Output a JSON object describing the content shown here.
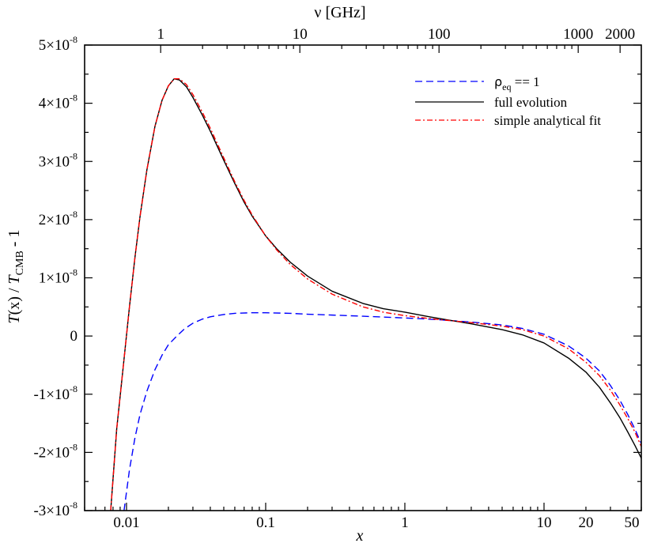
{
  "chart_data": {
    "type": "line",
    "title": "",
    "xlabel": "x",
    "ylabel_parts": {
      "T1": "T",
      "x": "(x) / ",
      "T2": "T",
      "sub": "CMB",
      "tail": " - 1"
    },
    "top_axis_label": "ν  [GHz]",
    "x_scale": "log",
    "xlim": [
      0.005,
      50
    ],
    "ylim": [
      -3e-08,
      5e-08
    ],
    "x_ticks": [
      {
        "value": 0.01,
        "label": "0.01"
      },
      {
        "value": 0.1,
        "label": "0.1"
      },
      {
        "value": 1,
        "label": "1"
      },
      {
        "value": 10,
        "label": "10"
      },
      {
        "value": 20,
        "label": "20"
      },
      {
        "value": 50,
        "label": "50"
      }
    ],
    "top_ticks": [
      {
        "x": 0.0176,
        "label": "1"
      },
      {
        "x": 0.176,
        "label": "10"
      },
      {
        "x": 1.76,
        "label": "100"
      },
      {
        "x": 17.6,
        "label": "1000"
      },
      {
        "x": 35.2,
        "label": "2000"
      }
    ],
    "y_ticks": [
      {
        "value": 5e-08,
        "mant": "5×10",
        "exp": "-8"
      },
      {
        "value": 4e-08,
        "mant": "4×10",
        "exp": "-8"
      },
      {
        "value": 3e-08,
        "mant": "3×10",
        "exp": "-8"
      },
      {
        "value": 2e-08,
        "mant": "2×10",
        "exp": "-8"
      },
      {
        "value": 1e-08,
        "mant": "1×10",
        "exp": "-8"
      },
      {
        "value": 0,
        "mant": "0",
        "exp": ""
      },
      {
        "value": -1e-08,
        "mant": "-1×10",
        "exp": "-8"
      },
      {
        "value": -2e-08,
        "mant": "-2×10",
        "exp": "-8"
      },
      {
        "value": -3e-08,
        "mant": "-3×10",
        "exp": "-8"
      }
    ],
    "legend": {
      "position": "top-right"
    },
    "series": [
      {
        "name": "ρ",
        "name_sub": "eq",
        "name_tail": " == 1",
        "color": "#0000ff",
        "dash": "9,5",
        "points": [
          [
            0.0096,
            -3e-08
          ],
          [
            0.0105,
            -2.3e-08
          ],
          [
            0.0115,
            -1.75e-08
          ],
          [
            0.0125,
            -1.35e-08
          ],
          [
            0.014,
            -9.5e-09
          ],
          [
            0.016,
            -5.8e-09
          ],
          [
            0.018,
            -3.3e-09
          ],
          [
            0.02,
            -1.5e-09
          ],
          [
            0.023,
            0.0
          ],
          [
            0.026,
            1.2e-09
          ],
          [
            0.03,
            2.2e-09
          ],
          [
            0.035,
            2.9e-09
          ],
          [
            0.04,
            3.3e-09
          ],
          [
            0.05,
            3.7e-09
          ],
          [
            0.06,
            3.9e-09
          ],
          [
            0.08,
            4e-09
          ],
          [
            0.1,
            4e-09
          ],
          [
            0.15,
            3.9e-09
          ],
          [
            0.2,
            3.75e-09
          ],
          [
            0.3,
            3.6e-09
          ],
          [
            0.5,
            3.4e-09
          ],
          [
            0.8,
            3.2e-09
          ],
          [
            1.0,
            3.1e-09
          ],
          [
            1.5,
            2.9e-09
          ],
          [
            2.0,
            2.7e-09
          ],
          [
            3.0,
            2.4e-09
          ],
          [
            5.0,
            1.9e-09
          ],
          [
            7.0,
            1.3e-09
          ],
          [
            10.0,
            3e-10
          ],
          [
            15.0,
            -1.7e-09
          ],
          [
            20.0,
            -3.8e-09
          ],
          [
            25.0,
            -6e-09
          ],
          [
            30.0,
            -8.5e-09
          ],
          [
            35.0,
            -1.1e-08
          ],
          [
            40.0,
            -1.35e-08
          ],
          [
            45.0,
            -1.6e-08
          ],
          [
            50.0,
            -1.85e-08
          ]
        ]
      },
      {
        "name": "full evolution",
        "color": "#000000",
        "dash": "",
        "points": [
          [
            0.0077,
            -3e-08
          ],
          [
            0.0085,
            -1.6e-08
          ],
          [
            0.0095,
            -5e-09
          ],
          [
            0.0105,
            5e-09
          ],
          [
            0.0115,
            1.35e-08
          ],
          [
            0.0125,
            2.05e-08
          ],
          [
            0.014,
            2.85e-08
          ],
          [
            0.016,
            3.6e-08
          ],
          [
            0.018,
            4.05e-08
          ],
          [
            0.02,
            4.3e-08
          ],
          [
            0.022,
            4.42e-08
          ],
          [
            0.024,
            4.4e-08
          ],
          [
            0.027,
            4.28e-08
          ],
          [
            0.03,
            4.1e-08
          ],
          [
            0.035,
            3.8e-08
          ],
          [
            0.04,
            3.52e-08
          ],
          [
            0.05,
            3.02e-08
          ],
          [
            0.06,
            2.62e-08
          ],
          [
            0.07,
            2.3e-08
          ],
          [
            0.08,
            2.06e-08
          ],
          [
            0.1,
            1.72e-08
          ],
          [
            0.12,
            1.5e-08
          ],
          [
            0.15,
            1.27e-08
          ],
          [
            0.2,
            1.03e-08
          ],
          [
            0.3,
            7.7e-09
          ],
          [
            0.5,
            5.6e-09
          ],
          [
            0.7,
            4.7e-09
          ],
          [
            1.0,
            4.1e-09
          ],
          [
            1.5,
            3.3e-09
          ],
          [
            2.0,
            2.8e-09
          ],
          [
            3.0,
            2.1e-09
          ],
          [
            5.0,
            1.1e-09
          ],
          [
            7.0,
            2e-10
          ],
          [
            10.0,
            -1.2e-09
          ],
          [
            15.0,
            -3.8e-09
          ],
          [
            20.0,
            -6.2e-09
          ],
          [
            25.0,
            -8.8e-09
          ],
          [
            30.0,
            -1.15e-08
          ],
          [
            35.0,
            -1.4e-08
          ],
          [
            40.0,
            -1.65e-08
          ],
          [
            45.0,
            -1.88e-08
          ],
          [
            50.0,
            -2.1e-08
          ]
        ]
      },
      {
        "name": "simple analytical fit",
        "color": "#ff0000",
        "dash": "7,3,2,3",
        "points": [
          [
            0.0077,
            -3e-08
          ],
          [
            0.0085,
            -1.6e-08
          ],
          [
            0.0095,
            -5e-09
          ],
          [
            0.0105,
            5e-09
          ],
          [
            0.0115,
            1.35e-08
          ],
          [
            0.0125,
            2.05e-08
          ],
          [
            0.014,
            2.85e-08
          ],
          [
            0.016,
            3.6e-08
          ],
          [
            0.018,
            4.05e-08
          ],
          [
            0.02,
            4.3e-08
          ],
          [
            0.022,
            4.42e-08
          ],
          [
            0.024,
            4.42e-08
          ],
          [
            0.027,
            4.32e-08
          ],
          [
            0.03,
            4.15e-08
          ],
          [
            0.035,
            3.85e-08
          ],
          [
            0.04,
            3.57e-08
          ],
          [
            0.05,
            3.06e-08
          ],
          [
            0.06,
            2.65e-08
          ],
          [
            0.07,
            2.33e-08
          ],
          [
            0.08,
            2.08e-08
          ],
          [
            0.1,
            1.72e-08
          ],
          [
            0.12,
            1.48e-08
          ],
          [
            0.15,
            1.23e-08
          ],
          [
            0.2,
            9.8e-09
          ],
          [
            0.3,
            7.2e-09
          ],
          [
            0.5,
            5e-09
          ],
          [
            0.7,
            4.1e-09
          ],
          [
            1.0,
            3.5e-09
          ],
          [
            1.5,
            3e-09
          ],
          [
            2.0,
            2.7e-09
          ],
          [
            3.0,
            2.3e-09
          ],
          [
            5.0,
            1.7e-09
          ],
          [
            7.0,
            1.1e-09
          ],
          [
            10.0,
            0.0
          ],
          [
            15.0,
            -2.2e-09
          ],
          [
            20.0,
            -4.5e-09
          ],
          [
            25.0,
            -6.8e-09
          ],
          [
            30.0,
            -9.3e-09
          ],
          [
            35.0,
            -1.18e-08
          ],
          [
            40.0,
            -1.42e-08
          ],
          [
            45.0,
            -1.65e-08
          ],
          [
            50.0,
            -1.9e-08
          ]
        ]
      }
    ]
  }
}
